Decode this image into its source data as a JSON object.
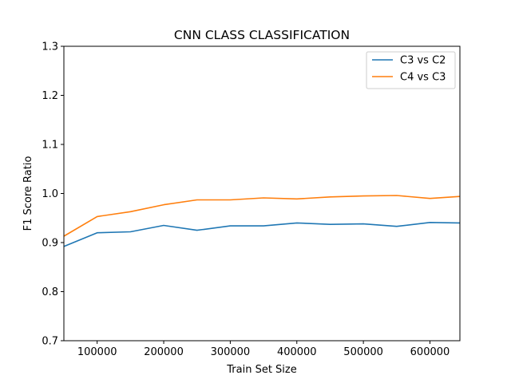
{
  "chart_data": {
    "type": "line",
    "title": "CNN CLASS CLASSIFICATION",
    "xlabel": "Train Set Size",
    "ylabel": "F1 Score Ratio",
    "xlim": [
      50000,
      645000
    ],
    "ylim": [
      0.7,
      1.3
    ],
    "xticks": [
      100000,
      200000,
      300000,
      400000,
      500000,
      600000
    ],
    "xtick_labels": [
      "100000",
      "200000",
      "300000",
      "400000",
      "500000",
      "600000"
    ],
    "yticks": [
      0.7,
      0.8,
      0.9,
      1.0,
      1.1,
      1.2,
      1.3
    ],
    "ytick_labels": [
      "0.7",
      "0.8",
      "0.9",
      "1.0",
      "1.1",
      "1.2",
      "1.3"
    ],
    "grid": false,
    "legend": "top-right",
    "x": [
      50000,
      100000,
      150000,
      200000,
      250000,
      300000,
      350000,
      400000,
      450000,
      500000,
      550000,
      600000,
      645000
    ],
    "series": [
      {
        "name": "C3 vs C2",
        "color": "#1f77b4",
        "values": [
          0.892,
          0.92,
          0.922,
          0.935,
          0.925,
          0.934,
          0.934,
          0.94,
          0.937,
          0.938,
          0.933,
          0.941,
          0.94
        ]
      },
      {
        "name": "C4 vs C3",
        "color": "#ff7f0e",
        "values": [
          0.913,
          0.953,
          0.963,
          0.977,
          0.987,
          0.987,
          0.991,
          0.989,
          0.993,
          0.995,
          0.996,
          0.99,
          0.994
        ]
      }
    ]
  }
}
